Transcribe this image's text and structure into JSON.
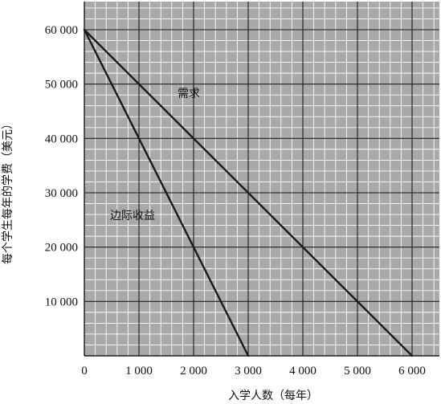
{
  "chart_data": {
    "type": "line",
    "xlabel": "入学人数（每年）",
    "ylabel": "每个学生每年的学费（美元）",
    "xlim": [
      0,
      6000
    ],
    "ylim": [
      0,
      60000
    ],
    "x_ticks": [
      0,
      1000,
      2000,
      3000,
      4000,
      5000,
      6000
    ],
    "x_tick_labels": [
      "0",
      "1 000",
      "2 000",
      "3 000",
      "4 000",
      "5 000",
      "6 000"
    ],
    "y_ticks": [
      10000,
      20000,
      30000,
      40000,
      50000,
      60000
    ],
    "y_tick_labels": [
      "10 000",
      "20 000",
      "30 000",
      "40 000",
      "50 000",
      "60 000"
    ],
    "minor_grid_step": {
      "x": 200,
      "y": 2000
    },
    "grid": true,
    "background": "#a9a9a9",
    "line_color": "#1a1a1a",
    "series": [
      {
        "name": "需求",
        "x": [
          0,
          6000
        ],
        "y": [
          60000,
          0
        ]
      },
      {
        "name": "边际收益",
        "x": [
          0,
          3000
        ],
        "y": [
          60000,
          0
        ]
      }
    ]
  }
}
